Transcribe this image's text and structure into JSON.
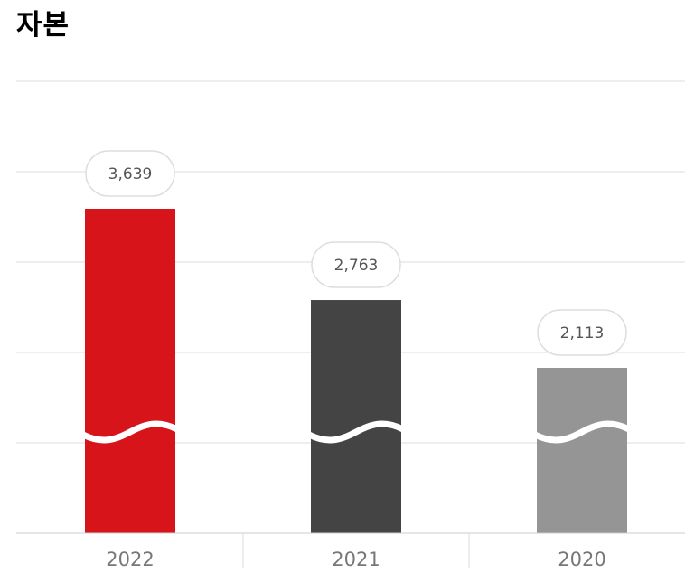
{
  "page": {
    "title": "자본"
  },
  "chart_data": {
    "type": "bar",
    "title": "자본",
    "categories": [
      "2022",
      "2021",
      "2020"
    ],
    "values": [
      3639,
      2763,
      2113
    ],
    "value_labels": [
      "3,639",
      "2,763",
      "2,113"
    ],
    "axis_break": true,
    "grid": true,
    "legend": "none"
  },
  "colors": {
    "bars": [
      "#d7141a",
      "#444444",
      "#959595"
    ],
    "gridline": "#dddddd",
    "baseline": "#cccccc",
    "label_text": "#555555",
    "year_text": "#777777",
    "bubble_border": "#dddddd"
  }
}
